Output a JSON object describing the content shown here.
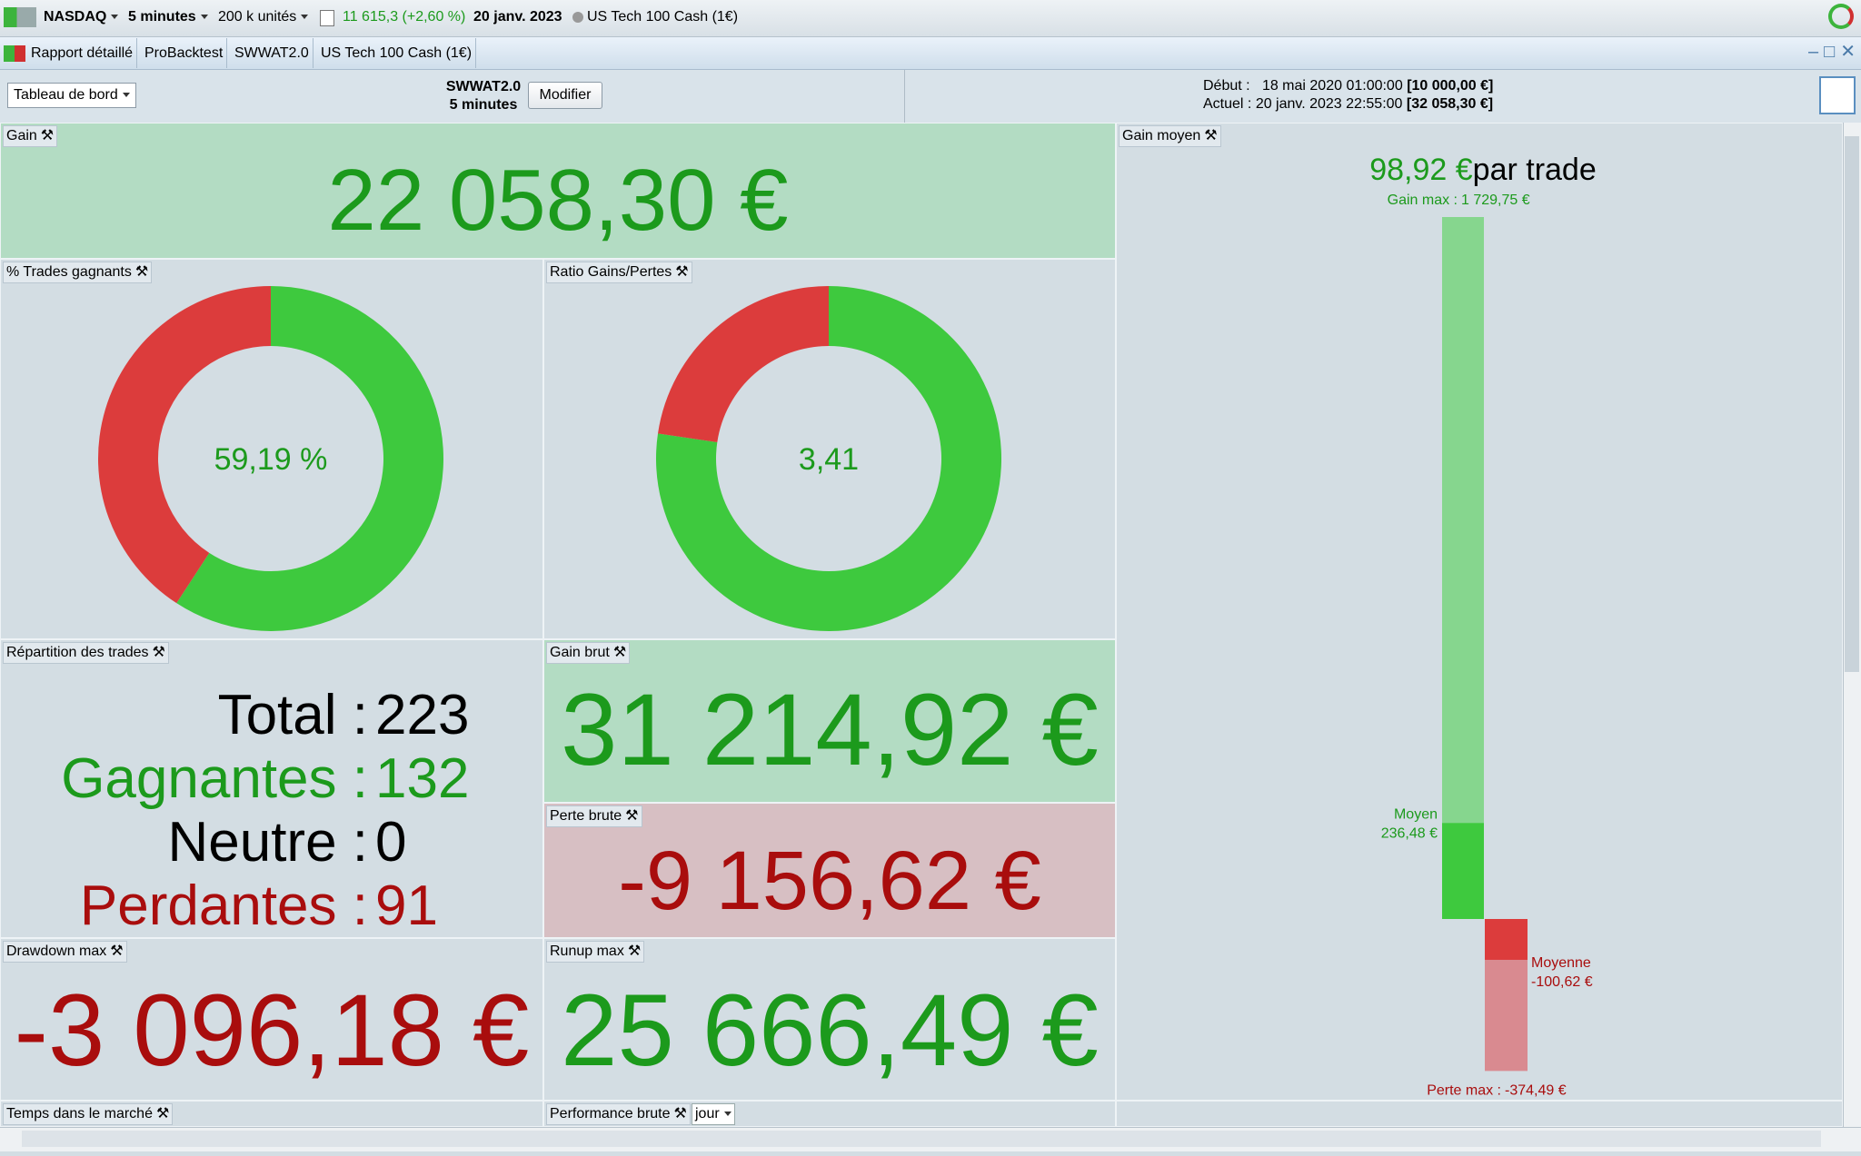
{
  "toolbar": {
    "symbol": "NASDAQ",
    "period": "5 minutes",
    "units": "200 k unités",
    "quote": "11 615,3 (+2,60 %)",
    "date": "20 janv. 2023",
    "instrument": "US Tech 100 Cash (1€)"
  },
  "tabs": [
    "Rapport détaillé",
    "ProBacktest",
    "SWWAT2.0",
    "US Tech 100 Cash (1€)"
  ],
  "header": {
    "view": "Tableau de bord",
    "system": "SWWAT2.0",
    "period": "5 minutes",
    "modify": "Modifier",
    "start_label": "Début :",
    "start_date": "18 mai 2020 01:00:00",
    "start_capital": "[10 000,00 €]",
    "current_label": "Actuel :",
    "current_date": "20 janv. 2023 22:55:00",
    "current_capital": "[32 058,30 €]"
  },
  "panels": {
    "gain": {
      "title": "Gain",
      "value": "22 058,30 €"
    },
    "win_rate": {
      "title": "% Trades gagnants",
      "label": "59,19 %"
    },
    "ratio": {
      "title": "Ratio Gains/Pertes",
      "label": "3,41"
    },
    "distribution": {
      "title": "Répartition des trades",
      "rows": [
        {
          "name": "Total :",
          "value": 223
        },
        {
          "name": "Gagnantes :",
          "value": 132
        },
        {
          "name": "Neutre :",
          "value": 0
        },
        {
          "name": "Perdantes :",
          "value": 91
        }
      ]
    },
    "gross_gain": {
      "title": "Gain brut",
      "value": {
        "value": 31214.92,
        "label": "31 214,92 €"
      }
    },
    "gross_loss": {
      "title": "Perte brute",
      "value": {
        "value": -9156.62,
        "label": "-9 156,62 €"
      }
    },
    "drawdown": {
      "title": "Drawdown max",
      "value": "-3 096,18 €"
    },
    "runup": {
      "title": "Runup max",
      "value": "25 666,49 €"
    },
    "time_in_market": {
      "title": "Temps dans le marché"
    },
    "performance": {
      "title": "Performance brute",
      "period": "jour"
    },
    "avg_gain": {
      "title": "Gain moyen",
      "value": "98,92 €",
      "unit": "par trade",
      "gain_max_label": "Gain max :",
      "gain_max": {
        "value": 1729.75,
        "label": "1 729,75 €"
      },
      "avg_win_label": "Moyen",
      "avg_win": {
        "value": 236.48,
        "label": "236,48 €"
      },
      "avg_loss_label": "Moyenne",
      "avg_loss": {
        "value": -100.62,
        "label": "-100,62 €"
      },
      "loss_max_label": "Perte max :",
      "loss_max": {
        "value": -374.49,
        "label": "-374,49 €"
      }
    }
  }
}
